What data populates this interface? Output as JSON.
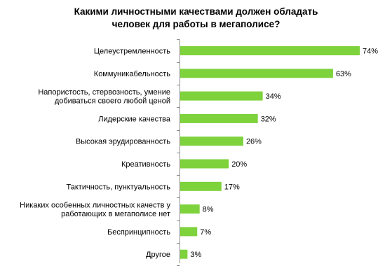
{
  "chart_data": {
    "type": "bar",
    "orientation": "horizontal",
    "title": "Какими личностными  качествами должен обладать\nчеловек для работы в мегаполисе?",
    "xlabel": "",
    "ylabel": "",
    "xlim": [
      0,
      80
    ],
    "grid": false,
    "legend": "none",
    "bar_color": "#7ED23C",
    "value_suffix": "%",
    "categories": [
      [
        "Целеустремленность"
      ],
      [
        "Коммуникабельность"
      ],
      [
        "Напористость, стервозность, умение",
        "добиваться своего любой ценой"
      ],
      [
        "Лидерские качества"
      ],
      [
        "Высокая эрудированность"
      ],
      [
        "Креативность"
      ],
      [
        "Тактичность, пунктуальность"
      ],
      [
        "Никаких особенных личностных качеств у",
        "работающих в мегаполисе нет"
      ],
      [
        "Беспринципность"
      ],
      [
        "Другое"
      ]
    ],
    "values": [
      74,
      63,
      34,
      32,
      26,
      20,
      17,
      8,
      7,
      3
    ],
    "data_labels": [
      "74%",
      "63%",
      "34%",
      "32%",
      "26%",
      "20%",
      "17%",
      "8%",
      "7%",
      "3%"
    ]
  }
}
